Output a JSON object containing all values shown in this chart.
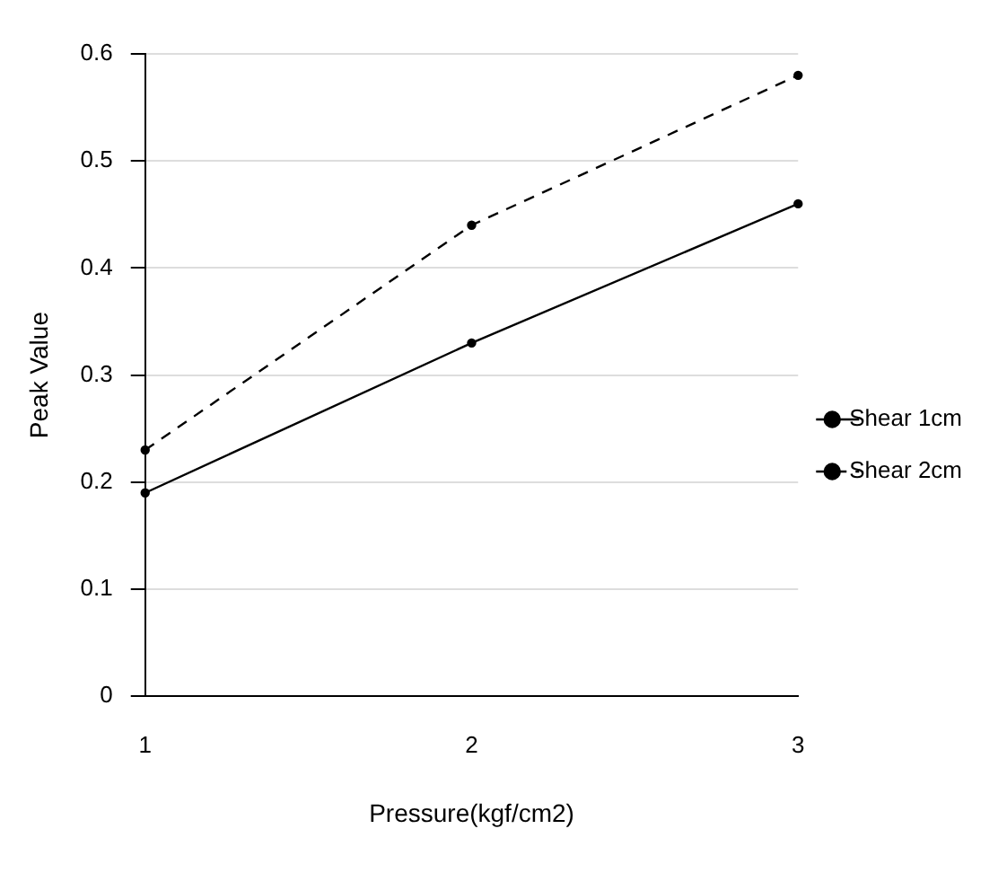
{
  "chart_data": {
    "type": "line",
    "xlabel": "Pressure(kgf/cm2)",
    "ylabel": "Peak Value",
    "categories": [
      "1",
      "2",
      "3"
    ],
    "series": [
      {
        "name": "Shear 1cm",
        "color": "#000000",
        "values": [
          0.19,
          0.33,
          0.46
        ],
        "line_style": "solid"
      },
      {
        "name": "Shear 2cm",
        "color": "#000000",
        "values": [
          0.23,
          0.44,
          0.58
        ],
        "line_style": "dashed"
      }
    ],
    "ylim": [
      0,
      0.6
    ],
    "yticks": [
      0,
      0.1,
      0.2,
      0.3,
      0.4,
      0.5,
      0.6
    ],
    "grid": "y",
    "legend": "right",
    "marker": "circle"
  }
}
